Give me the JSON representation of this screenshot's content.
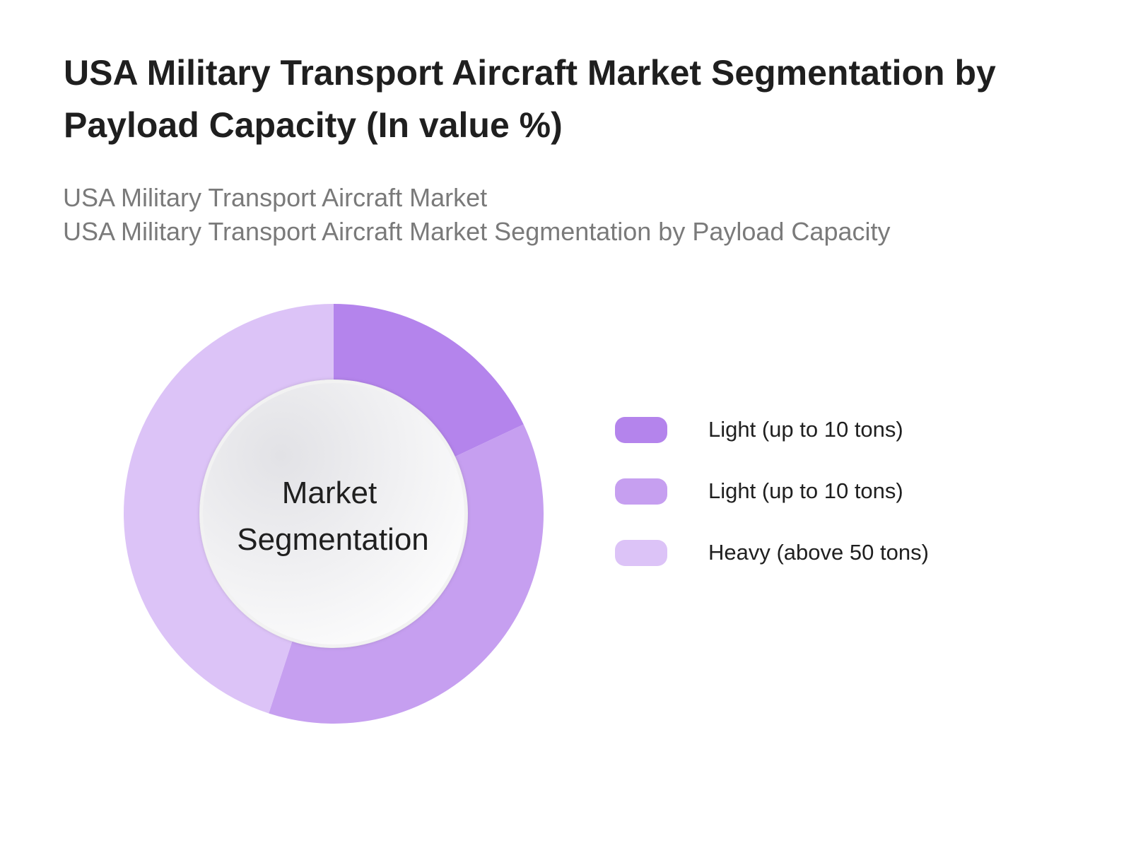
{
  "header": {
    "title": "USA Military Transport Aircraft Market Segmentation by Payload Capacity (In value %)",
    "subtitle_lines": [
      "USA Military Transport Aircraft Market",
      "USA Military Transport Aircraft Market Segmentation by Payload Capacity"
    ]
  },
  "chart_data": {
    "type": "pie",
    "variant": "donut",
    "center_label_lines": [
      "Market",
      "Segmentation"
    ],
    "categories": [
      "Light (up to 10 tons)",
      "Light (up to 10 tons)",
      "Heavy (above 50 tons)"
    ],
    "values": [
      18,
      37,
      45
    ],
    "unit": "%",
    "colors": [
      "#b484ec",
      "#c69ff0",
      "#dcc3f7"
    ],
    "legend_position": "right"
  }
}
